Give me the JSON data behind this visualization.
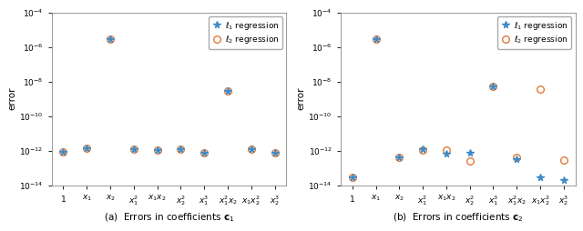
{
  "subplot_a": {
    "title": "(a)  Errors in coefficients $\\mathbf{c}_1$",
    "l1_values": [
      9e-13,
      1.5e-12,
      3e-06,
      1.3e-12,
      1.1e-12,
      1.2e-12,
      8e-13,
      3e-09,
      1.2e-12,
      8e-13
    ],
    "l2_values": [
      9e-13,
      1.5e-12,
      3e-06,
      1.3e-12,
      1.1e-12,
      1.2e-12,
      8e-13,
      3e-09,
      1.2e-12,
      8e-13
    ]
  },
  "subplot_b": {
    "title": "(b)  Errors in coefficients $\\mathbf{c}_2$",
    "l1_values": [
      3e-14,
      3e-06,
      4e-13,
      1.2e-12,
      7e-13,
      8e-13,
      5e-09,
      3.5e-13,
      3e-14,
      2e-14
    ],
    "l2_values": [
      3e-14,
      3e-06,
      4e-13,
      1.1e-12,
      1.1e-12,
      2.5e-13,
      5e-09,
      4e-13,
      3.5e-09,
      3e-13
    ]
  },
  "x_labels": [
    "$1$",
    "$x_1$",
    "$x_2$",
    "$x_1^2$",
    "$x_1x_2$",
    "$x_2^2$",
    "$x_1^3$",
    "$x_1^2x_2$",
    "$x_1x_2^2$",
    "$x_2^3$"
  ],
  "ylim": [
    1e-14,
    0.0001
  ],
  "yticks": [
    1e-14,
    1e-12,
    1e-10,
    1e-08,
    1e-06,
    0.0001
  ],
  "l1_color": "#3C8BC7",
  "l2_color": "#E07B39",
  "l1_marker": "*",
  "l2_marker": "o",
  "l1_label": "$\\ell_1$ regression",
  "l2_label": "$\\ell_2$ regression",
  "ylabel": "error",
  "background_color": "#ffffff"
}
